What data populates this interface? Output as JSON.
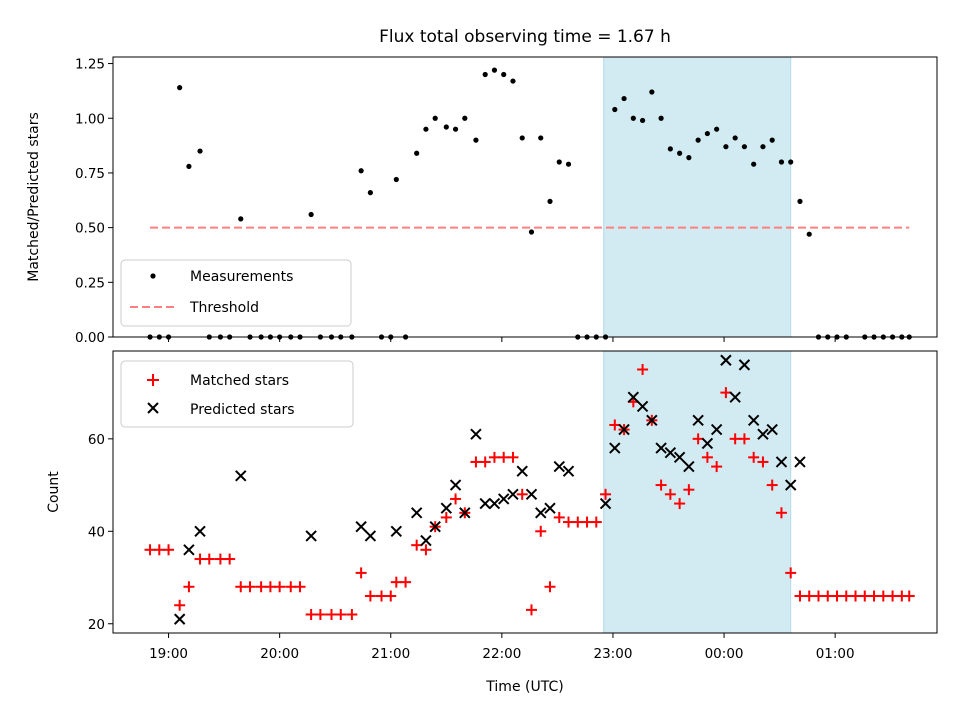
{
  "chart_data": [
    {
      "type": "scatter",
      "title": "Flux total observing time = 1.67 h",
      "ylabel": "Matched/Predicted stars",
      "xlabel": "",
      "x_axis": {
        "kind": "time",
        "start": "18:30",
        "end": "01:55",
        "ticks": [
          "19:00",
          "20:00",
          "21:00",
          "22:00",
          "23:00",
          "00:00",
          "01:00"
        ],
        "tick_labels_shown": false
      },
      "ylim": [
        0,
        1.28
      ],
      "yticks": [
        "0.00",
        "0.25",
        "0.50",
        "0.75",
        "1.00",
        "1.25"
      ],
      "shaded_interval": {
        "start": "22:55",
        "end": "00:36",
        "color": "#add8e6"
      },
      "legend": {
        "position": "lower-left",
        "entries": [
          "Measurements",
          "Threshold"
        ]
      },
      "threshold": {
        "name": "Threshold",
        "value": 0.5,
        "start": "18:50",
        "end": "01:40",
        "color": "#ff8080",
        "style": "dashed"
      },
      "series": [
        {
          "name": "Measurements",
          "color": "#000000",
          "marker": "dot",
          "points": [
            [
              "18:50",
              0
            ],
            [
              "18:55",
              0
            ],
            [
              "19:00",
              0
            ],
            [
              "19:06",
              1.14
            ],
            [
              "19:11",
              0.78
            ],
            [
              "19:17",
              0.85
            ],
            [
              "19:22",
              0
            ],
            [
              "19:28",
              0
            ],
            [
              "19:33",
              0
            ],
            [
              "19:39",
              0.54
            ],
            [
              "19:44",
              0
            ],
            [
              "19:50",
              0
            ],
            [
              "19:55",
              0
            ],
            [
              "20:00",
              0
            ],
            [
              "20:06",
              0
            ],
            [
              "20:11",
              0
            ],
            [
              "20:17",
              0.56
            ],
            [
              "20:22",
              0
            ],
            [
              "20:28",
              0
            ],
            [
              "20:33",
              0
            ],
            [
              "20:39",
              0
            ],
            [
              "20:44",
              0.76
            ],
            [
              "20:49",
              0.66
            ],
            [
              "20:55",
              0
            ],
            [
              "21:00",
              0
            ],
            [
              "21:03",
              0.72
            ],
            [
              "21:08",
              0
            ],
            [
              "21:14",
              0.84
            ],
            [
              "21:19",
              0.95
            ],
            [
              "21:24",
              1.0
            ],
            [
              "21:30",
              0.96
            ],
            [
              "21:35",
              0.95
            ],
            [
              "21:40",
              1.0
            ],
            [
              "21:46",
              0.9
            ],
            [
              "21:51",
              1.2
            ],
            [
              "21:56",
              1.22
            ],
            [
              "22:01",
              1.2
            ],
            [
              "22:06",
              1.17
            ],
            [
              "22:11",
              0.91
            ],
            [
              "22:16",
              0.48
            ],
            [
              "22:21",
              0.91
            ],
            [
              "22:26",
              0.62
            ],
            [
              "22:31",
              0.8
            ],
            [
              "22:36",
              0.79
            ],
            [
              "22:41",
              0
            ],
            [
              "22:46",
              0
            ],
            [
              "22:51",
              0
            ],
            [
              "22:56",
              0
            ],
            [
              "23:01",
              1.04
            ],
            [
              "23:06",
              1.09
            ],
            [
              "23:11",
              1.0
            ],
            [
              "23:16",
              0.99
            ],
            [
              "23:21",
              1.12
            ],
            [
              "23:26",
              1.0
            ],
            [
              "23:31",
              0.86
            ],
            [
              "23:36",
              0.84
            ],
            [
              "23:41",
              0.82
            ],
            [
              "23:46",
              0.9
            ],
            [
              "23:51",
              0.93
            ],
            [
              "23:56",
              0.95
            ],
            [
              "00:01",
              0.87
            ],
            [
              "00:06",
              0.91
            ],
            [
              "00:11",
              0.87
            ],
            [
              "00:16",
              0.79
            ],
            [
              "00:21",
              0.87
            ],
            [
              "00:26",
              0.9
            ],
            [
              "00:31",
              0.8
            ],
            [
              "00:36",
              0.8
            ],
            [
              "00:41",
              0.62
            ],
            [
              "00:46",
              0.47
            ],
            [
              "00:51",
              0
            ],
            [
              "00:56",
              0
            ],
            [
              "01:01",
              0
            ],
            [
              "01:06",
              0
            ],
            [
              "01:16",
              0
            ],
            [
              "01:21",
              0
            ],
            [
              "01:26",
              0
            ],
            [
              "01:31",
              0
            ],
            [
              "01:36",
              0
            ],
            [
              "01:40",
              0
            ]
          ]
        }
      ]
    },
    {
      "type": "scatter",
      "title": "",
      "ylabel": "Count",
      "xlabel": "Time (UTC)",
      "x_axis": {
        "kind": "time",
        "start": "18:30",
        "end": "01:55",
        "ticks": [
          "19:00",
          "20:00",
          "21:00",
          "22:00",
          "23:00",
          "00:00",
          "01:00"
        ],
        "tick_labels_shown": true
      },
      "ylim": [
        18,
        79
      ],
      "yticks": [
        "20",
        "40",
        "60"
      ],
      "shaded_interval": {
        "start": "22:55",
        "end": "00:36",
        "color": "#add8e6"
      },
      "legend": {
        "position": "upper-left",
        "entries": [
          "Matched stars",
          "Predicted stars"
        ]
      },
      "series": [
        {
          "name": "Matched stars",
          "color": "#ff0000",
          "marker": "plus",
          "points": [
            [
              "18:50",
              36
            ],
            [
              "18:55",
              36
            ],
            [
              "19:00",
              36
            ],
            [
              "19:06",
              24
            ],
            [
              "19:11",
              28
            ],
            [
              "19:17",
              34
            ],
            [
              "19:22",
              34
            ],
            [
              "19:28",
              34
            ],
            [
              "19:33",
              34
            ],
            [
              "19:39",
              28
            ],
            [
              "19:44",
              28
            ],
            [
              "19:50",
              28
            ],
            [
              "19:55",
              28
            ],
            [
              "20:00",
              28
            ],
            [
              "20:06",
              28
            ],
            [
              "20:11",
              28
            ],
            [
              "20:17",
              22
            ],
            [
              "20:22",
              22
            ],
            [
              "20:28",
              22
            ],
            [
              "20:33",
              22
            ],
            [
              "20:39",
              22
            ],
            [
              "20:44",
              31
            ],
            [
              "20:49",
              26
            ],
            [
              "20:55",
              26
            ],
            [
              "21:00",
              26
            ],
            [
              "21:03",
              29
            ],
            [
              "21:08",
              29
            ],
            [
              "21:14",
              37
            ],
            [
              "21:19",
              36
            ],
            [
              "21:24",
              41
            ],
            [
              "21:30",
              43
            ],
            [
              "21:35",
              47
            ],
            [
              "21:40",
              44
            ],
            [
              "21:46",
              55
            ],
            [
              "21:51",
              55
            ],
            [
              "21:56",
              56
            ],
            [
              "22:01",
              56
            ],
            [
              "22:06",
              56
            ],
            [
              "22:11",
              48
            ],
            [
              "22:16",
              23
            ],
            [
              "22:21",
              40
            ],
            [
              "22:26",
              28
            ],
            [
              "22:31",
              43
            ],
            [
              "22:36",
              42
            ],
            [
              "22:41",
              42
            ],
            [
              "22:46",
              42
            ],
            [
              "22:51",
              42
            ],
            [
              "22:56",
              48
            ],
            [
              "23:01",
              63
            ],
            [
              "23:06",
              62
            ],
            [
              "23:11",
              68
            ],
            [
              "23:16",
              75
            ],
            [
              "23:21",
              64
            ],
            [
              "23:26",
              50
            ],
            [
              "23:31",
              48
            ],
            [
              "23:36",
              46
            ],
            [
              "23:41",
              49
            ],
            [
              "23:46",
              60
            ],
            [
              "23:51",
              56
            ],
            [
              "23:56",
              54
            ],
            [
              "00:01",
              70
            ],
            [
              "00:06",
              60
            ],
            [
              "00:11",
              60
            ],
            [
              "00:16",
              56
            ],
            [
              "00:21",
              55
            ],
            [
              "00:26",
              50
            ],
            [
              "00:31",
              44
            ],
            [
              "00:36",
              31
            ],
            [
              "00:41",
              26
            ],
            [
              "00:46",
              26
            ],
            [
              "00:51",
              26
            ],
            [
              "00:56",
              26
            ],
            [
              "01:01",
              26
            ],
            [
              "01:06",
              26
            ],
            [
              "01:11",
              26
            ],
            [
              "01:16",
              26
            ],
            [
              "01:21",
              26
            ],
            [
              "01:26",
              26
            ],
            [
              "01:31",
              26
            ],
            [
              "01:36",
              26
            ],
            [
              "01:40",
              26
            ]
          ]
        },
        {
          "name": "Predicted stars",
          "color": "#000000",
          "marker": "x",
          "points": [
            [
              "19:06",
              21
            ],
            [
              "19:11",
              36
            ],
            [
              "19:17",
              40
            ],
            [
              "19:39",
              52
            ],
            [
              "20:17",
              39
            ],
            [
              "20:44",
              41
            ],
            [
              "20:49",
              39
            ],
            [
              "21:03",
              40
            ],
            [
              "21:14",
              44
            ],
            [
              "21:19",
              38
            ],
            [
              "21:24",
              41
            ],
            [
              "21:30",
              45
            ],
            [
              "21:35",
              50
            ],
            [
              "21:40",
              44
            ],
            [
              "21:46",
              61
            ],
            [
              "21:51",
              46
            ],
            [
              "21:56",
              46
            ],
            [
              "22:01",
              47
            ],
            [
              "22:06",
              48
            ],
            [
              "22:11",
              53
            ],
            [
              "22:16",
              48
            ],
            [
              "22:21",
              44
            ],
            [
              "22:26",
              45
            ],
            [
              "22:31",
              54
            ],
            [
              "22:36",
              53
            ],
            [
              "22:56",
              46
            ],
            [
              "23:01",
              58
            ],
            [
              "23:06",
              62
            ],
            [
              "23:11",
              69
            ],
            [
              "23:16",
              67
            ],
            [
              "23:21",
              64
            ],
            [
              "23:26",
              58
            ],
            [
              "23:31",
              57
            ],
            [
              "23:36",
              56
            ],
            [
              "23:41",
              54
            ],
            [
              "23:46",
              64
            ],
            [
              "23:51",
              59
            ],
            [
              "23:56",
              62
            ],
            [
              "00:01",
              77
            ],
            [
              "00:06",
              69
            ],
            [
              "00:11",
              76
            ],
            [
              "00:16",
              64
            ],
            [
              "00:21",
              61
            ],
            [
              "00:26",
              62
            ],
            [
              "00:31",
              55
            ],
            [
              "00:36",
              50
            ],
            [
              "00:41",
              55
            ]
          ]
        }
      ]
    }
  ]
}
